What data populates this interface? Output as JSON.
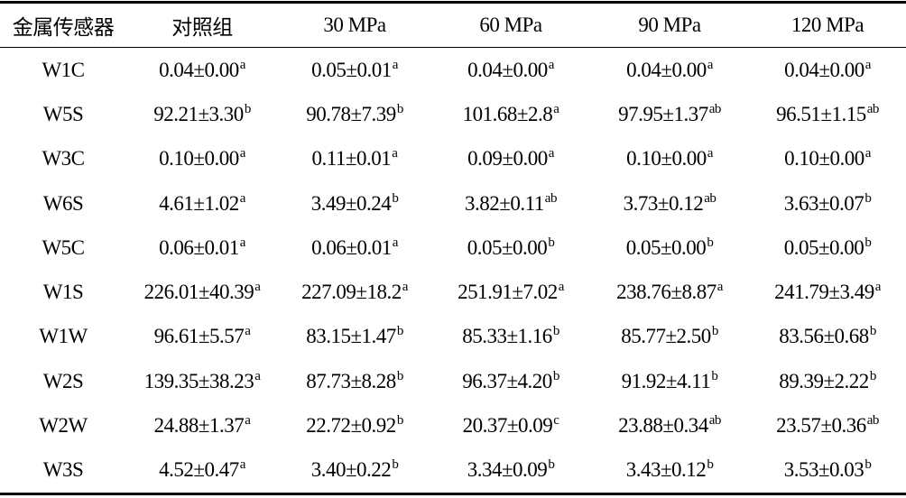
{
  "table": {
    "header": [
      "金属传感器",
      "对照组",
      "30 MPa",
      "60 MPa",
      "90 MPa",
      "120 MPa"
    ],
    "rows": [
      {
        "sensor": "W1C",
        "cells": [
          [
            "0.04±0.00",
            "a"
          ],
          [
            "0.05±0.01",
            "a"
          ],
          [
            "0.04±0.00",
            "a"
          ],
          [
            "0.04±0.00",
            "a"
          ],
          [
            "0.04±0.00",
            "a"
          ]
        ]
      },
      {
        "sensor": "W5S",
        "cells": [
          [
            "92.21±3.30",
            "b"
          ],
          [
            "90.78±7.39",
            "b"
          ],
          [
            "101.68±2.8",
            "a"
          ],
          [
            "97.95±1.37",
            "ab"
          ],
          [
            "96.51±1.15",
            "ab"
          ]
        ]
      },
      {
        "sensor": "W3C",
        "cells": [
          [
            "0.10±0.00",
            "a"
          ],
          [
            "0.11±0.01",
            "a"
          ],
          [
            "0.09±0.00",
            "a"
          ],
          [
            "0.10±0.00",
            "a"
          ],
          [
            "0.10±0.00",
            "a"
          ]
        ]
      },
      {
        "sensor": "W6S",
        "cells": [
          [
            "4.61±1.02",
            "a"
          ],
          [
            "3.49±0.24",
            "b"
          ],
          [
            "3.82±0.11",
            "ab"
          ],
          [
            "3.73±0.12",
            "ab"
          ],
          [
            "3.63±0.07",
            "b"
          ]
        ]
      },
      {
        "sensor": "W5C",
        "cells": [
          [
            "0.06±0.01",
            "a"
          ],
          [
            "0.06±0.01",
            "a"
          ],
          [
            "0.05±0.00",
            "b"
          ],
          [
            "0.05±0.00",
            "b"
          ],
          [
            "0.05±0.00",
            "b"
          ]
        ]
      },
      {
        "sensor": "W1S",
        "cells": [
          [
            "226.01±40.39",
            "a"
          ],
          [
            "227.09±18.2",
            "a"
          ],
          [
            "251.91±7.02",
            "a"
          ],
          [
            "238.76±8.87",
            "a"
          ],
          [
            "241.79±3.49",
            "a"
          ]
        ]
      },
      {
        "sensor": "W1W",
        "cells": [
          [
            "96.61±5.57",
            "a"
          ],
          [
            "83.15±1.47",
            "b"
          ],
          [
            "85.33±1.16",
            "b"
          ],
          [
            "85.77±2.50",
            "b"
          ],
          [
            "83.56±0.68",
            "b"
          ]
        ]
      },
      {
        "sensor": "W2S",
        "cells": [
          [
            "139.35±38.23",
            "a"
          ],
          [
            "87.73±8.28",
            "b"
          ],
          [
            "96.37±4.20",
            "b"
          ],
          [
            "91.92±4.11",
            "b"
          ],
          [
            "89.39±2.22",
            "b"
          ]
        ]
      },
      {
        "sensor": "W2W",
        "cells": [
          [
            "24.88±1.37",
            "a"
          ],
          [
            "22.72±0.92",
            "b"
          ],
          [
            "20.37±0.09",
            "c"
          ],
          [
            "23.88±0.34",
            "ab"
          ],
          [
            "23.57±0.36",
            "ab"
          ]
        ]
      },
      {
        "sensor": "W3S",
        "cells": [
          [
            "4.52±0.47",
            "a"
          ],
          [
            "3.40±0.22",
            "b"
          ],
          [
            "3.34±0.09",
            "b"
          ],
          [
            "3.43±0.12",
            "b"
          ],
          [
            "3.53±0.03",
            "b"
          ]
        ]
      }
    ]
  }
}
